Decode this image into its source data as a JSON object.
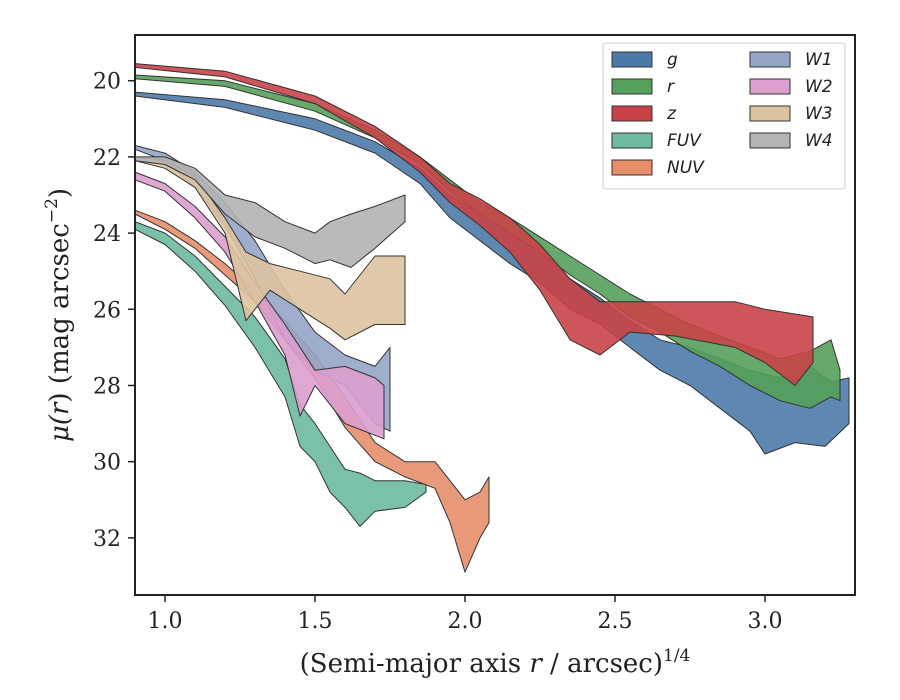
{
  "chart_data": {
    "type": "area",
    "xlabel": "(Semi-major axis r / arcsec)^{1/4}",
    "xlabel_parts": {
      "main": "(Semi-major axis ",
      "var": "r",
      "rest": " / arcsec)",
      "sup": "1/4"
    },
    "ylabel": "μ(r) (mag arcsec^{-2})",
    "ylabel_parts": {
      "mu": "μ(",
      "var": "r",
      "rest": ") (mag arcsec",
      "sup": "−2",
      "close": ")"
    },
    "xlim": [
      0.9,
      3.3
    ],
    "ylim": [
      33.5,
      18.8
    ],
    "y_inverted": true,
    "xticks": [
      1.0,
      1.5,
      2.0,
      2.5,
      3.0
    ],
    "xtick_labels": [
      "1.0",
      "1.5",
      "2.0",
      "2.5",
      "3.0"
    ],
    "yticks": [
      20,
      22,
      24,
      26,
      28,
      30,
      32
    ],
    "ytick_labels": [
      "20",
      "22",
      "24",
      "26",
      "28",
      "30",
      "32"
    ],
    "grid": false,
    "legend_position": "top-right",
    "series": [
      {
        "name": "g",
        "color": "#4c7aa8",
        "upper": [
          [
            0.9,
            20.3
          ],
          [
            1.2,
            20.5
          ],
          [
            1.5,
            21.0
          ],
          [
            1.7,
            21.6
          ],
          [
            1.85,
            22.3
          ],
          [
            1.95,
            23.0
          ],
          [
            2.05,
            23.5
          ],
          [
            2.15,
            24.0
          ],
          [
            2.25,
            24.5
          ],
          [
            2.35,
            25.2
          ],
          [
            2.45,
            25.7
          ],
          [
            2.55,
            26.3
          ],
          [
            2.65,
            26.8
          ],
          [
            2.75,
            27.0
          ],
          [
            2.85,
            27.3
          ],
          [
            2.95,
            27.6
          ],
          [
            3.05,
            27.8
          ],
          [
            3.15,
            27.5
          ],
          [
            3.22,
            27.9
          ],
          [
            3.28,
            27.8
          ]
        ],
        "lower": [
          [
            0.9,
            20.4
          ],
          [
            1.2,
            20.7
          ],
          [
            1.5,
            21.3
          ],
          [
            1.7,
            21.9
          ],
          [
            1.85,
            22.7
          ],
          [
            1.95,
            23.6
          ],
          [
            2.05,
            24.2
          ],
          [
            2.15,
            24.8
          ],
          [
            2.25,
            25.3
          ],
          [
            2.35,
            26.0
          ],
          [
            2.45,
            26.4
          ],
          [
            2.55,
            27.0
          ],
          [
            2.65,
            27.6
          ],
          [
            2.75,
            28.0
          ],
          [
            2.85,
            28.6
          ],
          [
            2.95,
            29.2
          ],
          [
            3.0,
            29.8
          ],
          [
            3.1,
            29.5
          ],
          [
            3.2,
            29.6
          ],
          [
            3.28,
            29.0
          ]
        ]
      },
      {
        "name": "r",
        "color": "#55a05a",
        "upper": [
          [
            0.9,
            19.85
          ],
          [
            1.2,
            20.0
          ],
          [
            1.5,
            20.6
          ],
          [
            1.7,
            21.3
          ],
          [
            1.85,
            22.0
          ],
          [
            1.95,
            22.6
          ],
          [
            2.05,
            23.2
          ],
          [
            2.15,
            23.6
          ],
          [
            2.25,
            24.1
          ],
          [
            2.35,
            24.6
          ],
          [
            2.45,
            25.1
          ],
          [
            2.55,
            25.6
          ],
          [
            2.65,
            26.0
          ],
          [
            2.75,
            26.4
          ],
          [
            2.85,
            26.7
          ],
          [
            2.95,
            27.0
          ],
          [
            3.05,
            27.3
          ],
          [
            3.15,
            27.1
          ],
          [
            3.22,
            26.8
          ],
          [
            3.25,
            27.6
          ]
        ],
        "lower": [
          [
            0.9,
            19.95
          ],
          [
            1.2,
            20.15
          ],
          [
            1.5,
            20.8
          ],
          [
            1.7,
            21.5
          ],
          [
            1.85,
            22.2
          ],
          [
            1.95,
            22.9
          ],
          [
            2.05,
            23.5
          ],
          [
            2.15,
            24.0
          ],
          [
            2.25,
            24.5
          ],
          [
            2.35,
            25.1
          ],
          [
            2.45,
            25.6
          ],
          [
            2.55,
            26.2
          ],
          [
            2.65,
            26.6
          ],
          [
            2.75,
            27.1
          ],
          [
            2.85,
            27.5
          ],
          [
            2.95,
            28.0
          ],
          [
            3.05,
            28.4
          ],
          [
            3.15,
            28.6
          ],
          [
            3.22,
            28.3
          ],
          [
            3.25,
            28.4
          ]
        ]
      },
      {
        "name": "z",
        "color": "#c94247",
        "upper": [
          [
            0.9,
            19.55
          ],
          [
            1.2,
            19.75
          ],
          [
            1.5,
            20.4
          ],
          [
            1.7,
            21.2
          ],
          [
            1.85,
            22.0
          ],
          [
            1.95,
            22.7
          ],
          [
            2.05,
            23.1
          ],
          [
            2.15,
            23.6
          ],
          [
            2.25,
            24.3
          ],
          [
            2.35,
            25.2
          ],
          [
            2.45,
            25.8
          ],
          [
            2.55,
            25.8
          ],
          [
            2.7,
            25.8
          ],
          [
            2.9,
            25.8
          ],
          [
            3.0,
            26.0
          ],
          [
            3.16,
            26.2
          ]
        ],
        "lower": [
          [
            0.9,
            19.65
          ],
          [
            1.2,
            19.9
          ],
          [
            1.5,
            20.6
          ],
          [
            1.7,
            21.5
          ],
          [
            1.85,
            22.4
          ],
          [
            1.95,
            23.2
          ],
          [
            2.05,
            23.8
          ],
          [
            2.15,
            24.5
          ],
          [
            2.25,
            25.5
          ],
          [
            2.35,
            26.8
          ],
          [
            2.45,
            27.2
          ],
          [
            2.55,
            26.6
          ],
          [
            2.7,
            26.7
          ],
          [
            2.9,
            27.0
          ],
          [
            3.0,
            27.4
          ],
          [
            3.1,
            28.0
          ],
          [
            3.16,
            27.4
          ]
        ]
      },
      {
        "name": "FUV",
        "color": "#6dbaa0",
        "upper": [
          [
            0.9,
            23.7
          ],
          [
            1.0,
            24.0
          ],
          [
            1.1,
            24.6
          ],
          [
            1.2,
            25.4
          ],
          [
            1.3,
            26.2
          ],
          [
            1.4,
            27.3
          ],
          [
            1.45,
            28.5
          ],
          [
            1.5,
            29.0
          ],
          [
            1.55,
            29.6
          ],
          [
            1.6,
            30.2
          ],
          [
            1.65,
            30.3
          ],
          [
            1.7,
            30.5
          ],
          [
            1.8,
            30.5
          ],
          [
            1.87,
            30.6
          ]
        ],
        "lower": [
          [
            0.9,
            23.9
          ],
          [
            1.0,
            24.3
          ],
          [
            1.1,
            25.0
          ],
          [
            1.2,
            25.9
          ],
          [
            1.3,
            27.0
          ],
          [
            1.4,
            28.3
          ],
          [
            1.45,
            29.6
          ],
          [
            1.5,
            30.0
          ],
          [
            1.55,
            30.8
          ],
          [
            1.6,
            31.2
          ],
          [
            1.65,
            31.7
          ],
          [
            1.7,
            31.3
          ],
          [
            1.8,
            31.2
          ],
          [
            1.87,
            30.8
          ]
        ]
      },
      {
        "name": "NUV",
        "color": "#e68e6a",
        "upper": [
          [
            0.9,
            23.4
          ],
          [
            1.0,
            23.7
          ],
          [
            1.1,
            24.2
          ],
          [
            1.2,
            24.8
          ],
          [
            1.3,
            25.5
          ],
          [
            1.4,
            26.3
          ],
          [
            1.5,
            27.2
          ],
          [
            1.6,
            28.3
          ],
          [
            1.7,
            29.5
          ],
          [
            1.8,
            30.0
          ],
          [
            1.9,
            30.0
          ],
          [
            1.95,
            30.5
          ],
          [
            2.0,
            31.0
          ],
          [
            2.05,
            30.8
          ],
          [
            2.08,
            30.4
          ]
        ],
        "lower": [
          [
            0.9,
            23.5
          ],
          [
            1.0,
            23.9
          ],
          [
            1.1,
            24.4
          ],
          [
            1.2,
            25.1
          ],
          [
            1.3,
            25.8
          ],
          [
            1.4,
            26.8
          ],
          [
            1.5,
            27.8
          ],
          [
            1.6,
            29.1
          ],
          [
            1.7,
            30.0
          ],
          [
            1.8,
            30.4
          ],
          [
            1.9,
            30.7
          ],
          [
            1.95,
            31.6
          ],
          [
            2.0,
            32.9
          ],
          [
            2.05,
            32.0
          ],
          [
            2.08,
            31.6
          ]
        ]
      },
      {
        "name": "W1",
        "color": "#95a5c8",
        "upper": [
          [
            0.9,
            21.7
          ],
          [
            1.0,
            21.9
          ],
          [
            1.1,
            22.4
          ],
          [
            1.2,
            23.2
          ],
          [
            1.3,
            24.2
          ],
          [
            1.4,
            25.5
          ],
          [
            1.5,
            26.6
          ],
          [
            1.6,
            27.2
          ],
          [
            1.7,
            27.5
          ],
          [
            1.75,
            27.0
          ]
        ],
        "lower": [
          [
            0.9,
            21.8
          ],
          [
            1.0,
            22.1
          ],
          [
            1.1,
            22.8
          ],
          [
            1.2,
            23.8
          ],
          [
            1.3,
            25.2
          ],
          [
            1.4,
            26.8
          ],
          [
            1.5,
            27.6
          ],
          [
            1.6,
            28.0
          ],
          [
            1.7,
            29.0
          ],
          [
            1.75,
            29.2
          ]
        ]
      },
      {
        "name": "W2",
        "color": "#dc9fcf",
        "upper": [
          [
            0.9,
            22.4
          ],
          [
            1.0,
            22.7
          ],
          [
            1.1,
            23.3
          ],
          [
            1.2,
            24.1
          ],
          [
            1.3,
            25.3
          ],
          [
            1.4,
            26.4
          ],
          [
            1.5,
            27.6
          ],
          [
            1.6,
            27.5
          ],
          [
            1.7,
            27.8
          ],
          [
            1.73,
            28.0
          ]
        ],
        "lower": [
          [
            0.9,
            22.6
          ],
          [
            1.0,
            22.9
          ],
          [
            1.1,
            23.6
          ],
          [
            1.2,
            24.5
          ],
          [
            1.3,
            25.8
          ],
          [
            1.4,
            27.2
          ],
          [
            1.45,
            28.8
          ],
          [
            1.5,
            28.0
          ],
          [
            1.6,
            29.0
          ],
          [
            1.73,
            29.4
          ]
        ]
      },
      {
        "name": "W3",
        "color": "#dcc3a0",
        "upper": [
          [
            0.9,
            22.0
          ],
          [
            1.0,
            22.1
          ],
          [
            1.1,
            22.5
          ],
          [
            1.2,
            23.6
          ],
          [
            1.27,
            24.5
          ],
          [
            1.35,
            24.8
          ],
          [
            1.45,
            25.0
          ],
          [
            1.55,
            25.2
          ],
          [
            1.6,
            25.6
          ],
          [
            1.7,
            24.6
          ],
          [
            1.8,
            24.6
          ]
        ],
        "lower": [
          [
            0.9,
            22.1
          ],
          [
            1.0,
            22.3
          ],
          [
            1.1,
            22.8
          ],
          [
            1.2,
            24.0
          ],
          [
            1.27,
            26.3
          ],
          [
            1.35,
            25.5
          ],
          [
            1.45,
            26.0
          ],
          [
            1.55,
            26.5
          ],
          [
            1.6,
            26.8
          ],
          [
            1.7,
            26.4
          ],
          [
            1.8,
            26.4
          ]
        ]
      },
      {
        "name": "W4",
        "color": "#b3b3b3",
        "upper": [
          [
            0.9,
            22.0
          ],
          [
            1.0,
            22.0
          ],
          [
            1.1,
            22.3
          ],
          [
            1.2,
            23.0
          ],
          [
            1.3,
            23.2
          ],
          [
            1.4,
            23.7
          ],
          [
            1.5,
            24.0
          ],
          [
            1.55,
            23.7
          ],
          [
            1.62,
            23.5
          ],
          [
            1.7,
            23.3
          ],
          [
            1.8,
            23.0
          ]
        ],
        "lower": [
          [
            0.9,
            22.1
          ],
          [
            1.0,
            22.2
          ],
          [
            1.1,
            22.6
          ],
          [
            1.2,
            23.5
          ],
          [
            1.3,
            24.1
          ],
          [
            1.4,
            24.4
          ],
          [
            1.5,
            24.8
          ],
          [
            1.55,
            24.7
          ],
          [
            1.62,
            24.9
          ],
          [
            1.7,
            24.4
          ],
          [
            1.8,
            23.7
          ]
        ]
      }
    ],
    "legend_columns": [
      [
        "g",
        "r",
        "z",
        "FUV",
        "NUV"
      ],
      [
        "W1",
        "W2",
        "W3",
        "W4"
      ]
    ]
  }
}
